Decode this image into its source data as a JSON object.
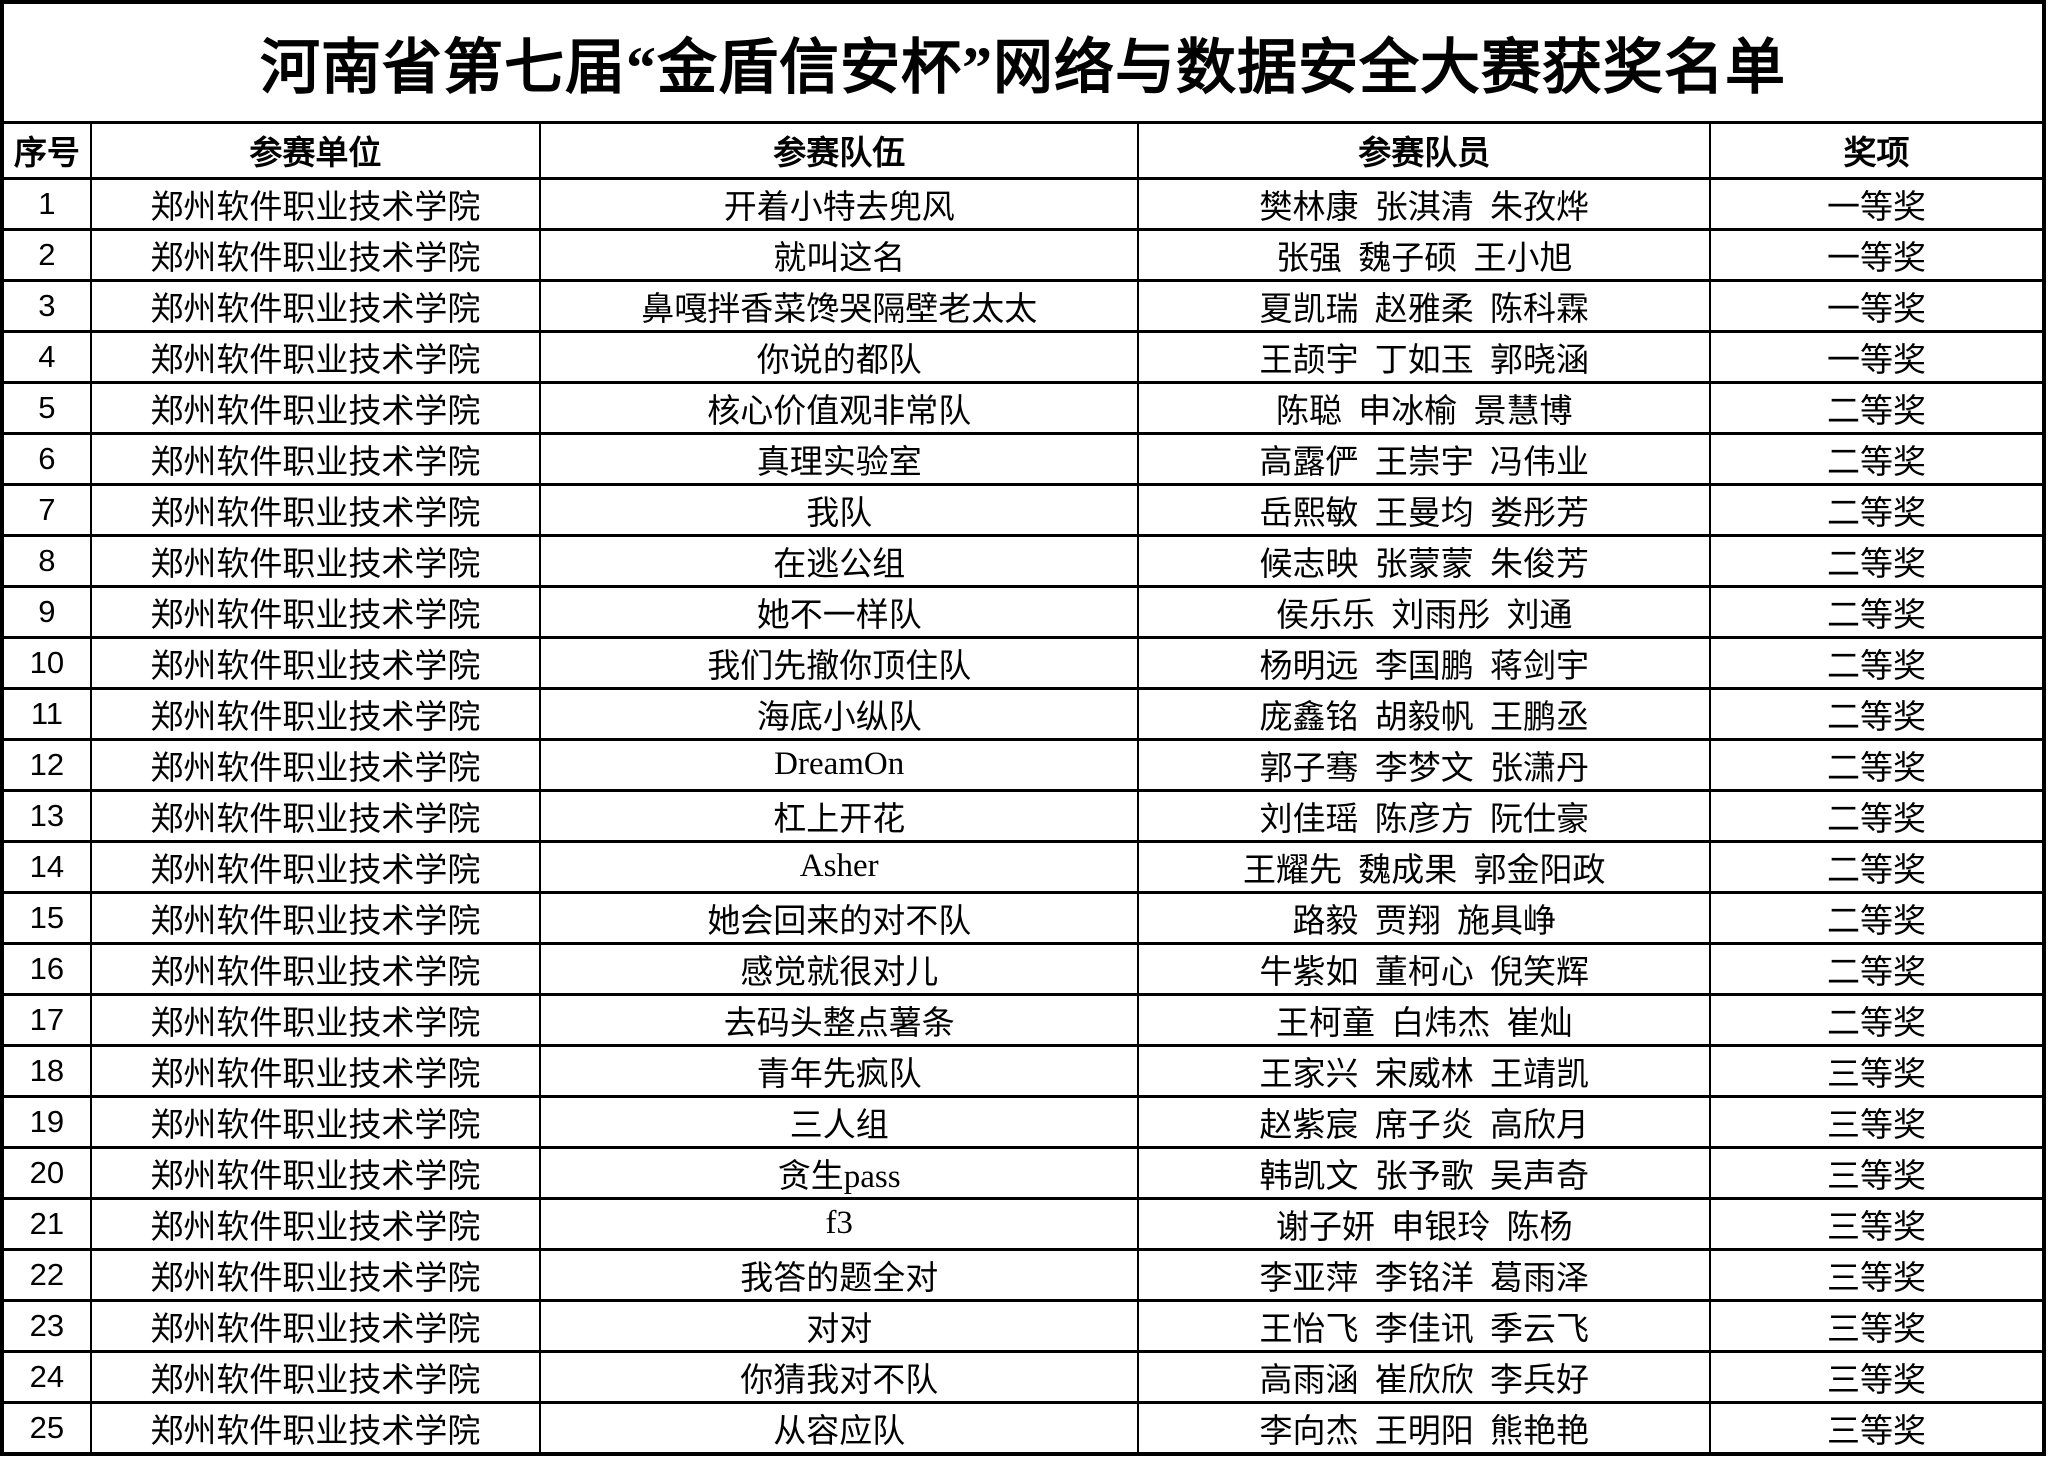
{
  "title": "河南省第七届“金盾信安杯”网络与数据安全大赛获奖名单",
  "table": {
    "columns": [
      "序号",
      "参赛单位",
      "参赛队伍",
      "参赛队员",
      "奖项"
    ],
    "rows": [
      {
        "no": "1",
        "unit": "郑州软件职业技术学院",
        "team": "开着小特去兜风",
        "members": "樊林康 张淇清 朱孜烨",
        "award": "一等奖"
      },
      {
        "no": "2",
        "unit": "郑州软件职业技术学院",
        "team": "就叫这名",
        "members": "张强 魏子硕 王小旭",
        "award": "一等奖"
      },
      {
        "no": "3",
        "unit": "郑州软件职业技术学院",
        "team": "鼻嘎拌香菜馋哭隔壁老太太",
        "members": "夏凯瑞 赵雅柔 陈科霖",
        "award": "一等奖"
      },
      {
        "no": "4",
        "unit": "郑州软件职业技术学院",
        "team": "你说的都队",
        "members": "王颉宇 丁如玉 郭晓涵",
        "award": "一等奖"
      },
      {
        "no": "5",
        "unit": "郑州软件职业技术学院",
        "team": "核心价值观非常队",
        "members": "陈聪 申冰榆 景慧博",
        "award": "二等奖"
      },
      {
        "no": "6",
        "unit": "郑州软件职业技术学院",
        "team": "真理实验室",
        "members": "高露俨 王崇宇 冯伟业",
        "award": "二等奖"
      },
      {
        "no": "7",
        "unit": "郑州软件职业技术学院",
        "team": "我队",
        "members": "岳熙敏 王曼均 娄彤芳",
        "award": "二等奖"
      },
      {
        "no": "8",
        "unit": "郑州软件职业技术学院",
        "team": "在逃公组",
        "members": "候志映 张蒙蒙 朱俊芳",
        "award": "二等奖"
      },
      {
        "no": "9",
        "unit": "郑州软件职业技术学院",
        "team": "她不一样队",
        "members": "侯乐乐 刘雨彤 刘通",
        "award": "二等奖"
      },
      {
        "no": "10",
        "unit": "郑州软件职业技术学院",
        "team": "我们先撤你顶住队",
        "members": "杨明远 李国鹏 蒋剑宇",
        "award": "二等奖"
      },
      {
        "no": "11",
        "unit": "郑州软件职业技术学院",
        "team": "海底小纵队",
        "members": "庞鑫铭 胡毅帆 王鹏丞",
        "award": "二等奖"
      },
      {
        "no": "12",
        "unit": "郑州软件职业技术学院",
        "team": "DreamOn",
        "members": "郭子骞 李梦文 张潇丹",
        "award": "二等奖"
      },
      {
        "no": "13",
        "unit": "郑州软件职业技术学院",
        "team": "杠上开花",
        "members": "刘佳瑶 陈彦方 阮仕豪",
        "award": "二等奖"
      },
      {
        "no": "14",
        "unit": "郑州软件职业技术学院",
        "team": "Asher",
        "members": "王耀先 魏成果 郭金阳政",
        "award": "二等奖"
      },
      {
        "no": "15",
        "unit": "郑州软件职业技术学院",
        "team": "她会回来的对不队",
        "members": "路毅 贾翔 施具峥",
        "award": "二等奖"
      },
      {
        "no": "16",
        "unit": "郑州软件职业技术学院",
        "team": "感觉就很对儿",
        "members": "牛紫如 董柯心 倪笑辉",
        "award": "二等奖"
      },
      {
        "no": "17",
        "unit": "郑州软件职业技术学院",
        "team": "去码头整点薯条",
        "members": "王柯童 白炜杰 崔灿",
        "award": "二等奖"
      },
      {
        "no": "18",
        "unit": "郑州软件职业技术学院",
        "team": "青年先疯队",
        "members": "王家兴 宋威林 王靖凯",
        "award": "三等奖"
      },
      {
        "no": "19",
        "unit": "郑州软件职业技术学院",
        "team": "三人组",
        "members": "赵紫宸 席子炎 高欣月",
        "award": "三等奖"
      },
      {
        "no": "20",
        "unit": "郑州软件职业技术学院",
        "team": "贪生pass",
        "members": "韩凯文 张予歌 吴声奇",
        "award": "三等奖"
      },
      {
        "no": "21",
        "unit": "郑州软件职业技术学院",
        "team": "f3",
        "members": "谢子妍 申银玲 陈杨",
        "award": "三等奖"
      },
      {
        "no": "22",
        "unit": "郑州软件职业技术学院",
        "team": "我答的题全对",
        "members": "李亚萍 李铭洋 葛雨泽",
        "award": "三等奖"
      },
      {
        "no": "23",
        "unit": "郑州软件职业技术学院",
        "team": "对对",
        "members": "王怡飞 李佳讯 季云飞",
        "award": "三等奖"
      },
      {
        "no": "24",
        "unit": "郑州软件职业技术学院",
        "team": "你猜我对不队",
        "members": "高雨涵 崔欣欣 李兵好",
        "award": "三等奖"
      },
      {
        "no": "25",
        "unit": "郑州软件职业技术学院",
        "team": "从容应队",
        "members": "李向杰 王明阳 熊艳艳",
        "award": "三等奖"
      }
    ]
  }
}
